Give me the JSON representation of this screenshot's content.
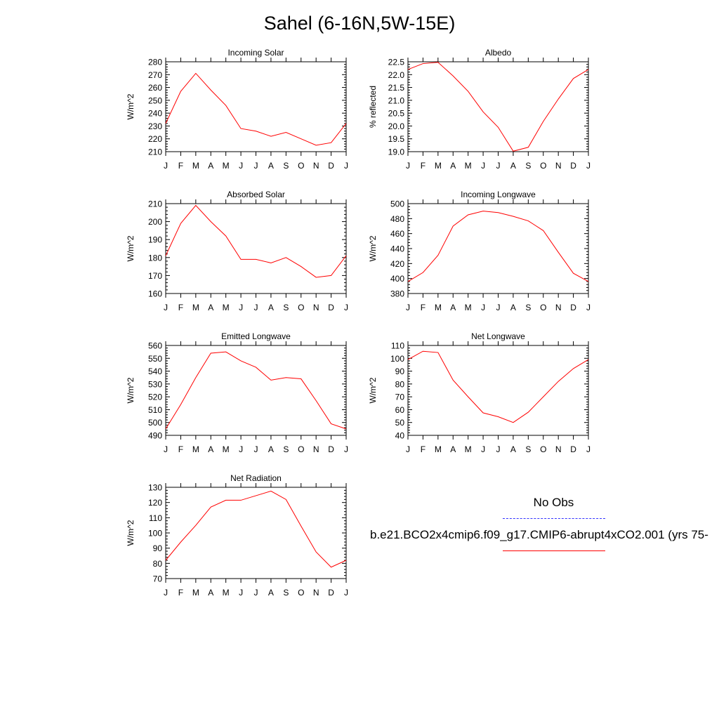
{
  "title": "Sahel (6-16N,5W-15E)",
  "months": [
    "J",
    "F",
    "M",
    "A",
    "M",
    "J",
    "J",
    "A",
    "S",
    "O",
    "N",
    "D",
    "J"
  ],
  "colors": {
    "model": "#ff0000",
    "obs": "#3333ff",
    "axis": "#000000"
  },
  "legend": {
    "obs_label": "No Obs",
    "model_label": "b.e21.BCO2x4cmip6.f09_g17.CMIP6-abrupt4xCO2.001 (yrs 75-"
  },
  "chart_data": [
    {
      "type": "line",
      "title": "Incoming Solar",
      "ylabel": "W/m^2",
      "ylim": [
        210,
        280
      ],
      "yticks": [
        "210",
        "220",
        "230",
        "240",
        "250",
        "260",
        "270",
        "280"
      ],
      "series": [
        {
          "values": [
            232,
            257,
            271,
            258,
            246,
            228,
            226,
            222,
            225,
            220,
            215,
            217,
            232
          ]
        }
      ]
    },
    {
      "type": "line",
      "title": "Albedo",
      "ylabel": "% reflected",
      "ylim": [
        19.0,
        22.5
      ],
      "yticks": [
        "19.0",
        "19.5",
        "20.0",
        "20.5",
        "21.0",
        "21.5",
        "22.0",
        "22.5"
      ],
      "series": [
        {
          "values": [
            22.2,
            22.43,
            22.48,
            21.95,
            21.35,
            20.55,
            19.95,
            19.02,
            19.17,
            20.18,
            21.05,
            21.85,
            22.2
          ]
        }
      ]
    },
    {
      "type": "line",
      "title": "Absorbed Solar",
      "ylabel": "W/m^2",
      "ylim": [
        160,
        210
      ],
      "yticks": [
        "160",
        "170",
        "180",
        "190",
        "200",
        "210"
      ],
      "series": [
        {
          "values": [
            181,
            199,
            209,
            200,
            192,
            179,
            179,
            177,
            180,
            175,
            169,
            170,
            181
          ]
        }
      ]
    },
    {
      "type": "line",
      "title": "Incoming Longwave",
      "ylabel": "W/m^2",
      "ylim": [
        380,
        500
      ],
      "yticks": [
        "380",
        "400",
        "420",
        "440",
        "460",
        "480",
        "500"
      ],
      "series": [
        {
          "values": [
            396,
            408,
            431,
            470,
            485,
            490,
            488,
            483,
            477,
            464,
            435,
            407,
            396
          ]
        }
      ]
    },
    {
      "type": "line",
      "title": "Emitted Longwave",
      "ylabel": "W/m^2",
      "ylim": [
        490,
        560
      ],
      "yticks": [
        "490",
        "500",
        "510",
        "520",
        "530",
        "540",
        "550",
        "560"
      ],
      "series": [
        {
          "values": [
            495,
            514,
            535,
            554,
            555,
            548,
            543,
            533,
            535,
            534,
            517,
            499,
            495
          ]
        }
      ]
    },
    {
      "type": "line",
      "title": "Net Longwave",
      "ylabel": "W/m^2",
      "ylim": [
        40,
        110
      ],
      "yticks": [
        "40",
        "50",
        "60",
        "70",
        "80",
        "90",
        "100",
        "110"
      ],
      "series": [
        {
          "values": [
            99,
            105.5,
            104.5,
            83,
            70,
            57.5,
            54.5,
            50,
            58,
            70,
            82,
            92,
            99
          ]
        }
      ]
    },
    {
      "type": "line",
      "title": "Net Radiation",
      "ylabel": "W/m^2",
      "ylim": [
        70,
        130
      ],
      "yticks": [
        "70",
        "80",
        "90",
        "100",
        "110",
        "120",
        "130"
      ],
      "series": [
        {
          "values": [
            82,
            94,
            105,
            117,
            121.5,
            121.5,
            124.5,
            127.5,
            122,
            104.5,
            87.5,
            77.5,
            82
          ]
        }
      ]
    }
  ]
}
